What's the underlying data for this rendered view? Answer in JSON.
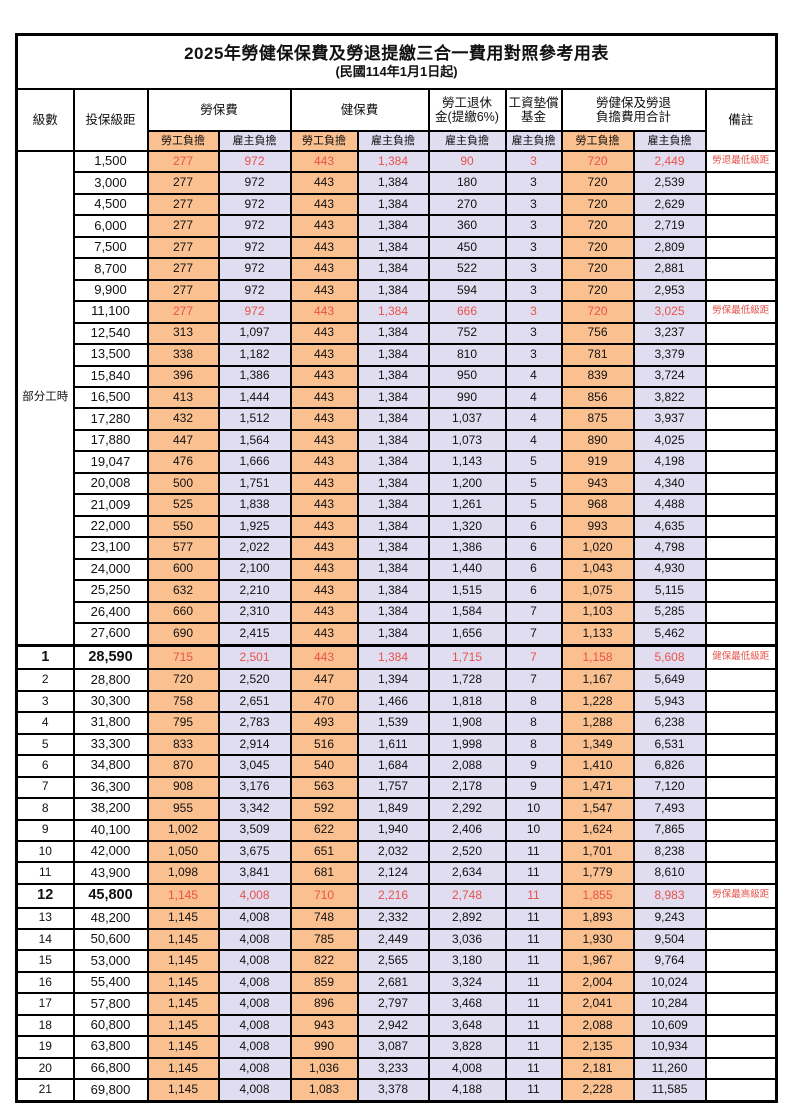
{
  "title": "2025年勞健保保費及勞退提繳三合一費用對照參考用表",
  "subtitle": "(民國114年1月1日起)",
  "header": {
    "level": "級數",
    "bracket": "投保級距",
    "labor_ins": "勞保費",
    "health_ins": "健保費",
    "pension": "勞工退休\n金(提繳6%)",
    "wage_fund": "工資墊償\n基金",
    "total": "勞健保及勞退\n負擔費用合計",
    "note": "備註",
    "employee": "勞工負擔",
    "employer": "雇主負擔"
  },
  "part_time_label": "部分工時",
  "part_time_rowspan": 23,
  "colors": {
    "employee_bg": "#FAC090",
    "employer_bg": "#E0DDF1",
    "highlight_red": "#E8524A",
    "border": "#000000"
  },
  "rows": [
    {
      "level": "",
      "bracket": "1,500",
      "values": [
        "277",
        "972",
        "443",
        "1,384",
        "90",
        "3",
        "720",
        "2,449"
      ],
      "note": "勞退最低級距",
      "highlight": true,
      "bold": false,
      "section": false
    },
    {
      "level": "",
      "bracket": "3,000",
      "values": [
        "277",
        "972",
        "443",
        "1,384",
        "180",
        "3",
        "720",
        "2,539"
      ],
      "note": "",
      "highlight": false,
      "bold": false,
      "section": false
    },
    {
      "level": "",
      "bracket": "4,500",
      "values": [
        "277",
        "972",
        "443",
        "1,384",
        "270",
        "3",
        "720",
        "2,629"
      ],
      "note": "",
      "highlight": false,
      "bold": false,
      "section": false
    },
    {
      "level": "",
      "bracket": "6,000",
      "values": [
        "277",
        "972",
        "443",
        "1,384",
        "360",
        "3",
        "720",
        "2,719"
      ],
      "note": "",
      "highlight": false,
      "bold": false,
      "section": false
    },
    {
      "level": "",
      "bracket": "7,500",
      "values": [
        "277",
        "972",
        "443",
        "1,384",
        "450",
        "3",
        "720",
        "2,809"
      ],
      "note": "",
      "highlight": false,
      "bold": false,
      "section": false
    },
    {
      "level": "",
      "bracket": "8,700",
      "values": [
        "277",
        "972",
        "443",
        "1,384",
        "522",
        "3",
        "720",
        "2,881"
      ],
      "note": "",
      "highlight": false,
      "bold": false,
      "section": false
    },
    {
      "level": "",
      "bracket": "9,900",
      "values": [
        "277",
        "972",
        "443",
        "1,384",
        "594",
        "3",
        "720",
        "2,953"
      ],
      "note": "",
      "highlight": false,
      "bold": false,
      "section": false
    },
    {
      "level": "",
      "bracket": "11,100",
      "values": [
        "277",
        "972",
        "443",
        "1,384",
        "666",
        "3",
        "720",
        "3,025"
      ],
      "note": "勞保最低級距",
      "highlight": true,
      "bold": false,
      "section": false
    },
    {
      "level": "",
      "bracket": "12,540",
      "values": [
        "313",
        "1,097",
        "443",
        "1,384",
        "752",
        "3",
        "756",
        "3,237"
      ],
      "note": "",
      "highlight": false,
      "bold": false,
      "section": false
    },
    {
      "level": "",
      "bracket": "13,500",
      "values": [
        "338",
        "1,182",
        "443",
        "1,384",
        "810",
        "3",
        "781",
        "3,379"
      ],
      "note": "",
      "highlight": false,
      "bold": false,
      "section": false
    },
    {
      "level": "",
      "bracket": "15,840",
      "values": [
        "396",
        "1,386",
        "443",
        "1,384",
        "950",
        "4",
        "839",
        "3,724"
      ],
      "note": "",
      "highlight": false,
      "bold": false,
      "section": false
    },
    {
      "level": "",
      "bracket": "16,500",
      "values": [
        "413",
        "1,444",
        "443",
        "1,384",
        "990",
        "4",
        "856",
        "3,822"
      ],
      "note": "",
      "highlight": false,
      "bold": false,
      "section": false
    },
    {
      "level": "",
      "bracket": "17,280",
      "values": [
        "432",
        "1,512",
        "443",
        "1,384",
        "1,037",
        "4",
        "875",
        "3,937"
      ],
      "note": "",
      "highlight": false,
      "bold": false,
      "section": false
    },
    {
      "level": "",
      "bracket": "17,880",
      "values": [
        "447",
        "1,564",
        "443",
        "1,384",
        "1,073",
        "4",
        "890",
        "4,025"
      ],
      "note": "",
      "highlight": false,
      "bold": false,
      "section": false
    },
    {
      "level": "",
      "bracket": "19,047",
      "values": [
        "476",
        "1,666",
        "443",
        "1,384",
        "1,143",
        "5",
        "919",
        "4,198"
      ],
      "note": "",
      "highlight": false,
      "bold": false,
      "section": false
    },
    {
      "level": "",
      "bracket": "20,008",
      "values": [
        "500",
        "1,751",
        "443",
        "1,384",
        "1,200",
        "5",
        "943",
        "4,340"
      ],
      "note": "",
      "highlight": false,
      "bold": false,
      "section": false
    },
    {
      "level": "",
      "bracket": "21,009",
      "values": [
        "525",
        "1,838",
        "443",
        "1,384",
        "1,261",
        "5",
        "968",
        "4,488"
      ],
      "note": "",
      "highlight": false,
      "bold": false,
      "section": false
    },
    {
      "level": "",
      "bracket": "22,000",
      "values": [
        "550",
        "1,925",
        "443",
        "1,384",
        "1,320",
        "6",
        "993",
        "4,635"
      ],
      "note": "",
      "highlight": false,
      "bold": false,
      "section": false
    },
    {
      "level": "",
      "bracket": "23,100",
      "values": [
        "577",
        "2,022",
        "443",
        "1,384",
        "1,386",
        "6",
        "1,020",
        "4,798"
      ],
      "note": "",
      "highlight": false,
      "bold": false,
      "section": false
    },
    {
      "level": "",
      "bracket": "24,000",
      "values": [
        "600",
        "2,100",
        "443",
        "1,384",
        "1,440",
        "6",
        "1,043",
        "4,930"
      ],
      "note": "",
      "highlight": false,
      "bold": false,
      "section": false
    },
    {
      "level": "",
      "bracket": "25,250",
      "values": [
        "632",
        "2,210",
        "443",
        "1,384",
        "1,515",
        "6",
        "1,075",
        "5,115"
      ],
      "note": "",
      "highlight": false,
      "bold": false,
      "section": false
    },
    {
      "level": "",
      "bracket": "26,400",
      "values": [
        "660",
        "2,310",
        "443",
        "1,384",
        "1,584",
        "7",
        "1,103",
        "5,285"
      ],
      "note": "",
      "highlight": false,
      "bold": false,
      "section": false
    },
    {
      "level": "",
      "bracket": "27,600",
      "values": [
        "690",
        "2,415",
        "443",
        "1,384",
        "1,656",
        "7",
        "1,133",
        "5,462"
      ],
      "note": "",
      "highlight": false,
      "bold": false,
      "section": false
    },
    {
      "level": "1",
      "bracket": "28,590",
      "values": [
        "715",
        "2,501",
        "443",
        "1,384",
        "1,715",
        "7",
        "1,158",
        "5,608"
      ],
      "note": "健保最低級距",
      "highlight": true,
      "bold": true,
      "section": true
    },
    {
      "level": "2",
      "bracket": "28,800",
      "values": [
        "720",
        "2,520",
        "447",
        "1,394",
        "1,728",
        "7",
        "1,167",
        "5,649"
      ],
      "note": "",
      "highlight": false,
      "bold": false,
      "section": false
    },
    {
      "level": "3",
      "bracket": "30,300",
      "values": [
        "758",
        "2,651",
        "470",
        "1,466",
        "1,818",
        "8",
        "1,228",
        "5,943"
      ],
      "note": "",
      "highlight": false,
      "bold": false,
      "section": false
    },
    {
      "level": "4",
      "bracket": "31,800",
      "values": [
        "795",
        "2,783",
        "493",
        "1,539",
        "1,908",
        "8",
        "1,288",
        "6,238"
      ],
      "note": "",
      "highlight": false,
      "bold": false,
      "section": false
    },
    {
      "level": "5",
      "bracket": "33,300",
      "values": [
        "833",
        "2,914",
        "516",
        "1,611",
        "1,998",
        "8",
        "1,349",
        "6,531"
      ],
      "note": "",
      "highlight": false,
      "bold": false,
      "section": false
    },
    {
      "level": "6",
      "bracket": "34,800",
      "values": [
        "870",
        "3,045",
        "540",
        "1,684",
        "2,088",
        "9",
        "1,410",
        "6,826"
      ],
      "note": "",
      "highlight": false,
      "bold": false,
      "section": false
    },
    {
      "level": "7",
      "bracket": "36,300",
      "values": [
        "908",
        "3,176",
        "563",
        "1,757",
        "2,178",
        "9",
        "1,471",
        "7,120"
      ],
      "note": "",
      "highlight": false,
      "bold": false,
      "section": false
    },
    {
      "level": "8",
      "bracket": "38,200",
      "values": [
        "955",
        "3,342",
        "592",
        "1,849",
        "2,292",
        "10",
        "1,547",
        "7,493"
      ],
      "note": "",
      "highlight": false,
      "bold": false,
      "section": false
    },
    {
      "level": "9",
      "bracket": "40,100",
      "values": [
        "1,002",
        "3,509",
        "622",
        "1,940",
        "2,406",
        "10",
        "1,624",
        "7,865"
      ],
      "note": "",
      "highlight": false,
      "bold": false,
      "section": false
    },
    {
      "level": "10",
      "bracket": "42,000",
      "values": [
        "1,050",
        "3,675",
        "651",
        "2,032",
        "2,520",
        "11",
        "1,701",
        "8,238"
      ],
      "note": "",
      "highlight": false,
      "bold": false,
      "section": false
    },
    {
      "level": "11",
      "bracket": "43,900",
      "values": [
        "1,098",
        "3,841",
        "681",
        "2,124",
        "2,634",
        "11",
        "1,779",
        "8,610"
      ],
      "note": "",
      "highlight": false,
      "bold": false,
      "section": false
    },
    {
      "level": "12",
      "bracket": "45,800",
      "values": [
        "1,145",
        "4,008",
        "710",
        "2,216",
        "2,748",
        "11",
        "1,855",
        "8,983"
      ],
      "note": "勞保最高級距",
      "highlight": true,
      "bold": true,
      "section": false
    },
    {
      "level": "13",
      "bracket": "48,200",
      "values": [
        "1,145",
        "4,008",
        "748",
        "2,332",
        "2,892",
        "11",
        "1,893",
        "9,243"
      ],
      "note": "",
      "highlight": false,
      "bold": false,
      "section": false
    },
    {
      "level": "14",
      "bracket": "50,600",
      "values": [
        "1,145",
        "4,008",
        "785",
        "2,449",
        "3,036",
        "11",
        "1,930",
        "9,504"
      ],
      "note": "",
      "highlight": false,
      "bold": false,
      "section": false
    },
    {
      "level": "15",
      "bracket": "53,000",
      "values": [
        "1,145",
        "4,008",
        "822",
        "2,565",
        "3,180",
        "11",
        "1,967",
        "9,764"
      ],
      "note": "",
      "highlight": false,
      "bold": false,
      "section": false
    },
    {
      "level": "16",
      "bracket": "55,400",
      "values": [
        "1,145",
        "4,008",
        "859",
        "2,681",
        "3,324",
        "11",
        "2,004",
        "10,024"
      ],
      "note": "",
      "highlight": false,
      "bold": false,
      "section": false
    },
    {
      "level": "17",
      "bracket": "57,800",
      "values": [
        "1,145",
        "4,008",
        "896",
        "2,797",
        "3,468",
        "11",
        "2,041",
        "10,284"
      ],
      "note": "",
      "highlight": false,
      "bold": false,
      "section": false
    },
    {
      "level": "18",
      "bracket": "60,800",
      "values": [
        "1,145",
        "4,008",
        "943",
        "2,942",
        "3,648",
        "11",
        "2,088",
        "10,609"
      ],
      "note": "",
      "highlight": false,
      "bold": false,
      "section": false
    },
    {
      "level": "19",
      "bracket": "63,800",
      "values": [
        "1,145",
        "4,008",
        "990",
        "3,087",
        "3,828",
        "11",
        "2,135",
        "10,934"
      ],
      "note": "",
      "highlight": false,
      "bold": false,
      "section": false
    },
    {
      "level": "20",
      "bracket": "66,800",
      "values": [
        "1,145",
        "4,008",
        "1,036",
        "3,233",
        "4,008",
        "11",
        "2,181",
        "11,260"
      ],
      "note": "",
      "highlight": false,
      "bold": false,
      "section": false
    },
    {
      "level": "21",
      "bracket": "69,800",
      "values": [
        "1,145",
        "4,008",
        "1,083",
        "3,378",
        "4,188",
        "11",
        "2,228",
        "11,585"
      ],
      "note": "",
      "highlight": false,
      "bold": false,
      "section": false
    }
  ]
}
